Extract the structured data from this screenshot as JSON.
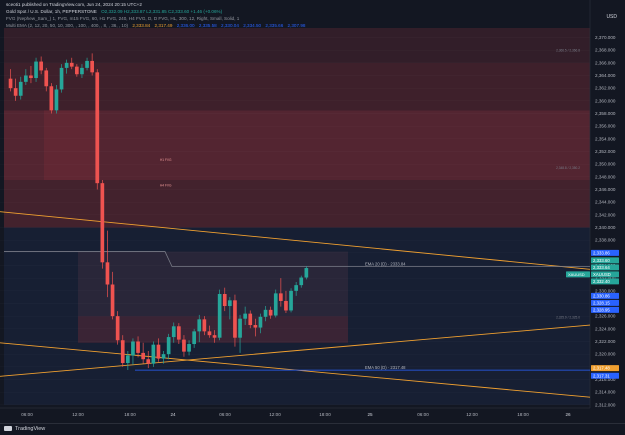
{
  "header": {
    "byline": "sceoti1 published on TradingView.com, Jun 24, 2024 20:15 UTC+2",
    "symbol": "Gold Spot / U.S. Dollar, 1h, PEPPERSTONE",
    "ohlc": "O2,332.09 H2,333.87 L2,331.85 C2,333.60 +1.46 (+0.06%)",
    "indicator1": "FVG (Nephew_Sam_) 1, FVG, m15 FVG, 60, H1 FVG, 240, H4 FVG, D, D FVG, HL, 300, 12, Right, Small, Solid, 1",
    "indicator2_name": "Multi EMA (2, 12, 20, 50, 10, 300, , 100, , 400, , 8, , 36, , 10)",
    "indicator2_values": [
      "2,333.84",
      "2,317.49",
      "2,336.00",
      "2,335.58",
      "2,330.04",
      "2,334.50",
      "2,335.66",
      "2,307.98"
    ]
  },
  "axis_unit": "USD",
  "branding": {
    "logo_text": "TradingView"
  },
  "colors": {
    "background": "#131722",
    "bull": "#26a69a",
    "bear": "#ef5350",
    "zone_red": "#7a2e3a",
    "zone_blue": "#1c2742",
    "trendline": "#f0a030",
    "ema_line": "#787b86",
    "ema_d": "#2962ff"
  },
  "chart_data": {
    "type": "candlestick",
    "title": "Gold Spot / U.S. Dollar, 1h",
    "y_ticks": [
      2312,
      2314,
      2316,
      2318,
      2320,
      2322,
      2324,
      2326,
      2328,
      2330,
      2332,
      2334,
      2336,
      2338,
      2340,
      2342,
      2344,
      2346,
      2348,
      2350,
      2352,
      2354,
      2356,
      2358,
      2360,
      2362,
      2364,
      2366,
      2368,
      2370
    ],
    "ylim": [
      2311.5,
      2371.5
    ],
    "x_labels": [
      "06:00",
      "12:00",
      "18:00",
      "24",
      "06:00",
      "12:00",
      "18:00",
      "25",
      "06:00",
      "12:00",
      "18:00",
      "26"
    ],
    "candles": [
      {
        "o": 2363.5,
        "h": 2365.0,
        "l": 2361.5,
        "c": 2362.0
      },
      {
        "o": 2362.0,
        "h": 2363.5,
        "l": 2360.0,
        "c": 2360.8
      },
      {
        "o": 2360.8,
        "h": 2363.8,
        "l": 2360.2,
        "c": 2363.0
      },
      {
        "o": 2363.0,
        "h": 2365.0,
        "l": 2362.5,
        "c": 2364.0
      },
      {
        "o": 2364.0,
        "h": 2365.5,
        "l": 2362.8,
        "c": 2363.6
      },
      {
        "o": 2363.6,
        "h": 2366.8,
        "l": 2363.0,
        "c": 2366.2
      },
      {
        "o": 2366.2,
        "h": 2367.0,
        "l": 2364.2,
        "c": 2364.8
      },
      {
        "o": 2364.8,
        "h": 2365.2,
        "l": 2361.5,
        "c": 2362.3
      },
      {
        "o": 2362.3,
        "h": 2362.8,
        "l": 2358.0,
        "c": 2358.5
      },
      {
        "o": 2358.5,
        "h": 2362.5,
        "l": 2358.0,
        "c": 2361.8
      },
      {
        "o": 2361.8,
        "h": 2365.8,
        "l": 2361.3,
        "c": 2365.2
      },
      {
        "o": 2365.2,
        "h": 2366.5,
        "l": 2364.3,
        "c": 2366.0
      },
      {
        "o": 2366.0,
        "h": 2366.8,
        "l": 2365.0,
        "c": 2365.4
      },
      {
        "o": 2365.4,
        "h": 2365.8,
        "l": 2363.8,
        "c": 2364.2
      },
      {
        "o": 2364.2,
        "h": 2365.8,
        "l": 2363.6,
        "c": 2365.2
      },
      {
        "o": 2365.2,
        "h": 2366.8,
        "l": 2364.8,
        "c": 2366.3
      },
      {
        "o": 2366.3,
        "h": 2367.5,
        "l": 2364.0,
        "c": 2364.5
      },
      {
        "o": 2364.5,
        "h": 2365.0,
        "l": 2346.0,
        "c": 2347.0
      },
      {
        "o": 2347.0,
        "h": 2347.5,
        "l": 2333.5,
        "c": 2334.5
      },
      {
        "o": 2334.5,
        "h": 2339.5,
        "l": 2329.0,
        "c": 2331.0
      },
      {
        "o": 2331.0,
        "h": 2333.0,
        "l": 2325.5,
        "c": 2326.0
      },
      {
        "o": 2326.0,
        "h": 2326.8,
        "l": 2321.5,
        "c": 2322.2
      },
      {
        "o": 2322.2,
        "h": 2323.0,
        "l": 2318.0,
        "c": 2318.6
      },
      {
        "o": 2318.6,
        "h": 2320.5,
        "l": 2317.5,
        "c": 2319.8
      },
      {
        "o": 2319.8,
        "h": 2322.5,
        "l": 2318.3,
        "c": 2322.0
      },
      {
        "o": 2322.0,
        "h": 2322.8,
        "l": 2319.5,
        "c": 2320.2
      },
      {
        "o": 2320.2,
        "h": 2321.8,
        "l": 2318.5,
        "c": 2319.2
      },
      {
        "o": 2319.2,
        "h": 2320.5,
        "l": 2317.8,
        "c": 2318.5
      },
      {
        "o": 2318.5,
        "h": 2322.0,
        "l": 2318.0,
        "c": 2321.5
      },
      {
        "o": 2321.5,
        "h": 2322.5,
        "l": 2318.8,
        "c": 2319.3
      },
      {
        "o": 2319.3,
        "h": 2320.5,
        "l": 2318.5,
        "c": 2320.0
      },
      {
        "o": 2320.0,
        "h": 2323.2,
        "l": 2319.2,
        "c": 2322.7
      },
      {
        "o": 2322.7,
        "h": 2325.0,
        "l": 2321.8,
        "c": 2324.4
      },
      {
        "o": 2324.4,
        "h": 2324.9,
        "l": 2321.6,
        "c": 2322.3
      },
      {
        "o": 2322.3,
        "h": 2323.0,
        "l": 2319.6,
        "c": 2320.4
      },
      {
        "o": 2320.4,
        "h": 2322.2,
        "l": 2319.8,
        "c": 2321.6
      },
      {
        "o": 2321.6,
        "h": 2324.0,
        "l": 2321.0,
        "c": 2323.6
      },
      {
        "o": 2323.6,
        "h": 2326.2,
        "l": 2321.9,
        "c": 2325.5
      },
      {
        "o": 2325.5,
        "h": 2326.0,
        "l": 2323.0,
        "c": 2323.6
      },
      {
        "o": 2323.6,
        "h": 2324.5,
        "l": 2322.6,
        "c": 2323.0
      },
      {
        "o": 2323.0,
        "h": 2323.8,
        "l": 2321.8,
        "c": 2322.6
      },
      {
        "o": 2322.6,
        "h": 2330.2,
        "l": 2322.2,
        "c": 2329.5
      },
      {
        "o": 2329.5,
        "h": 2330.5,
        "l": 2326.8,
        "c": 2327.6
      },
      {
        "o": 2327.6,
        "h": 2329.0,
        "l": 2325.5,
        "c": 2328.5
      },
      {
        "o": 2328.5,
        "h": 2329.4,
        "l": 2321.2,
        "c": 2322.6
      },
      {
        "o": 2322.6,
        "h": 2326.2,
        "l": 2320.2,
        "c": 2325.6
      },
      {
        "o": 2325.6,
        "h": 2327.5,
        "l": 2324.6,
        "c": 2326.4
      },
      {
        "o": 2326.4,
        "h": 2326.9,
        "l": 2324.1,
        "c": 2324.6
      },
      {
        "o": 2324.6,
        "h": 2325.6,
        "l": 2322.8,
        "c": 2324.2
      },
      {
        "o": 2324.2,
        "h": 2326.4,
        "l": 2323.3,
        "c": 2325.9
      },
      {
        "o": 2325.9,
        "h": 2327.6,
        "l": 2325.2,
        "c": 2327.0
      },
      {
        "o": 2327.0,
        "h": 2327.5,
        "l": 2325.6,
        "c": 2326.1
      },
      {
        "o": 2326.1,
        "h": 2330.2,
        "l": 2325.8,
        "c": 2329.6
      },
      {
        "o": 2329.6,
        "h": 2332.0,
        "l": 2327.5,
        "c": 2328.4
      },
      {
        "o": 2328.4,
        "h": 2330.0,
        "l": 2326.5,
        "c": 2326.9
      },
      {
        "o": 2326.9,
        "h": 2330.4,
        "l": 2326.6,
        "c": 2330.0
      },
      {
        "o": 2330.0,
        "h": 2331.4,
        "l": 2329.2,
        "c": 2330.9
      },
      {
        "o": 2330.9,
        "h": 2332.4,
        "l": 2330.5,
        "c": 2332.1
      },
      {
        "o": 2332.1,
        "h": 2333.9,
        "l": 2331.8,
        "c": 2333.6
      }
    ],
    "zones": [
      {
        "kind": "bear_fvg",
        "top": 2371.5,
        "bottom": 2366.0,
        "alpha": 0.3
      },
      {
        "kind": "bear_fvg",
        "top": 2366.0,
        "bottom": 2358.5,
        "alpha": 0.42
      },
      {
        "kind": "bear_fvg",
        "top": 2358.5,
        "bottom": 2347.5,
        "alpha": 0.62
      },
      {
        "kind": "bear_fvg",
        "top": 2347.5,
        "bottom": 2340.0,
        "alpha": 0.48
      },
      {
        "kind": "bull_zone",
        "top": 2340.0,
        "bottom": 2312.0,
        "alpha": 0.55
      }
    ],
    "zone_labels": [
      {
        "text": "H1 FVG",
        "price": 2350.5
      },
      {
        "text": "H4 FVG",
        "price": 2346.5
      }
    ],
    "right_zone_labels": [
      {
        "text": "2,366.5 / 2,366.8",
        "price": 2367.8
      },
      {
        "text": "2,348.8 / 2,350.2",
        "price": 2349.2
      },
      {
        "text": "2,325.9 / 2,325.0",
        "price": 2325.6
      }
    ],
    "ema_lines": [
      {
        "label": "EMA 20 (D) · 2333.84",
        "price": 2333.84,
        "color": "#787b86"
      },
      {
        "label": "EMA 50 (D) · 2317.48",
        "price": 2317.48,
        "color": "#2962ff"
      }
    ],
    "trendlines": [
      {
        "from": [
          0,
          2342.5
        ],
        "to": [
          1,
          2333.4
        ]
      },
      {
        "from": [
          0,
          2321.8
        ],
        "to": [
          1,
          2313.2
        ]
      },
      {
        "from": [
          0,
          2316.5
        ],
        "to": [
          1,
          2324.6
        ]
      }
    ],
    "price_tags": [
      {
        "text": "2,333.86",
        "price": 2336.0,
        "bg": "#2962ff"
      },
      {
        "text": "2,333.60",
        "price": 2334.8,
        "bg": "#26a69a"
      },
      {
        "text": "2,333.64",
        "price": 2333.7,
        "bg": "#26a69a"
      },
      {
        "text": "XAUUSD",
        "price": 2332.6,
        "bg": "#26a69a"
      },
      {
        "text": "2,332.40",
        "price": 2331.5,
        "bg": "#26a69a"
      },
      {
        "text": "2,330.86",
        "price": 2329.2,
        "bg": "#2962ff"
      },
      {
        "text": "2,328.15",
        "price": 2328.1,
        "bg": "#2962ff"
      },
      {
        "text": "2,328.95",
        "price": 2327.0,
        "bg": "#2962ff"
      },
      {
        "text": "2,317.48",
        "price": 2317.8,
        "bg": "#f0a030"
      },
      {
        "text": "2,317.31",
        "price": 2316.6,
        "bg": "#2962ff"
      }
    ]
  }
}
